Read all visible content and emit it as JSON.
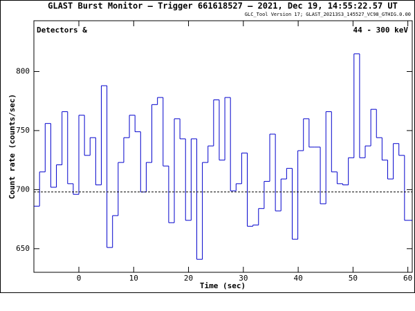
{
  "chart_data": {
    "type": "histogram",
    "title": "GLAST Burst Monitor  –  Trigger 661618527  –  2021, Dec 19, 14:55:22.57 UT",
    "subtitle": "GLC_Tool Version 17; GLAST_20213S3_145527_VC98_GTHIG.0.00",
    "annotations": [
      "Detectors  &",
      "44 - 300 keV"
    ],
    "xlabel": "Time (sec)",
    "ylabel": "Count rate (counts/sec)",
    "bins": [
      -8.192,
      -7.168,
      -6.144,
      -5.12,
      -4.096,
      -3.072,
      -2.048,
      -1.024,
      0,
      1.024,
      2.048,
      3.072,
      4.096,
      5.12,
      6.144,
      7.168,
      8.192,
      9.216,
      10.24,
      11.264,
      12.288,
      13.312,
      14.336,
      15.36,
      16.384,
      17.408,
      18.432,
      19.456,
      20.48,
      21.504,
      22.528,
      23.552,
      24.576,
      25.6,
      26.624,
      27.648,
      28.672,
      29.696,
      30.72,
      31.744,
      32.768,
      33.792,
      34.816,
      35.84,
      36.864,
      37.888,
      38.912,
      39.936,
      40.96,
      41.984,
      43.008,
      44.032,
      45.056,
      46.08,
      47.104,
      48.128,
      49.152,
      50.176,
      51.2,
      52.224,
      53.248,
      54.272,
      55.296,
      56.32,
      57.344,
      58.368,
      59.392,
      60.416,
      61.44
    ],
    "values": [
      686,
      715,
      756,
      702,
      721,
      766,
      705,
      696,
      763,
      729,
      744,
      704,
      788,
      651,
      678,
      723,
      744,
      763,
      749,
      698,
      723,
      772,
      778,
      720,
      672,
      760,
      743,
      674,
      743,
      641,
      723,
      737,
      776,
      725,
      778,
      699,
      705,
      731,
      669,
      670,
      684,
      707,
      747,
      682,
      709,
      718,
      658,
      733,
      760,
      736,
      736,
      688,
      766,
      715,
      705,
      704,
      727,
      815,
      727,
      737,
      768,
      744,
      725,
      709,
      739,
      729,
      674,
      674
    ],
    "background": 698,
    "color": "#0000cc",
    "xlim": [
      -8.2,
      60.8
    ],
    "ylim": [
      630,
      843
    ],
    "xticks": [
      0,
      10,
      20,
      30,
      40,
      50,
      60
    ],
    "yticks": [
      650,
      700,
      750,
      800
    ]
  }
}
